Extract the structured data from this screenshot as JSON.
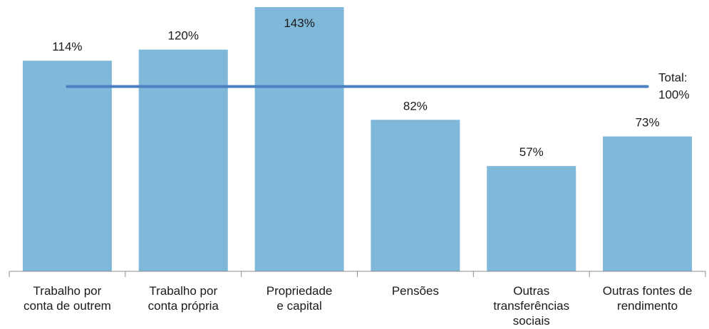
{
  "chart_data": {
    "type": "bar",
    "categories": [
      [
        "Trabalho por",
        "conta de outrem"
      ],
      [
        "Trabalho por",
        "conta própria"
      ],
      [
        "Propriedade",
        "e capital"
      ],
      [
        "Pensões"
      ],
      [
        "Outras",
        "transferências",
        "sociais"
      ],
      [
        "Outras fontes de",
        "rendimento"
      ]
    ],
    "values": [
      114,
      120,
      143,
      82,
      57,
      73
    ],
    "value_labels": [
      "114%",
      "120%",
      "143%",
      "82%",
      "57%",
      "73%"
    ],
    "reference_line": {
      "value": 100,
      "label_line1": "Total:",
      "label_line2": "100%"
    },
    "ylim": [
      0,
      143
    ],
    "grid": false,
    "legend": "none",
    "colors": {
      "bar": "#7fb8d8",
      "reference_line": "#4a7fc1",
      "axis": "#8c8c8c",
      "text": "#1a1a1a"
    }
  }
}
